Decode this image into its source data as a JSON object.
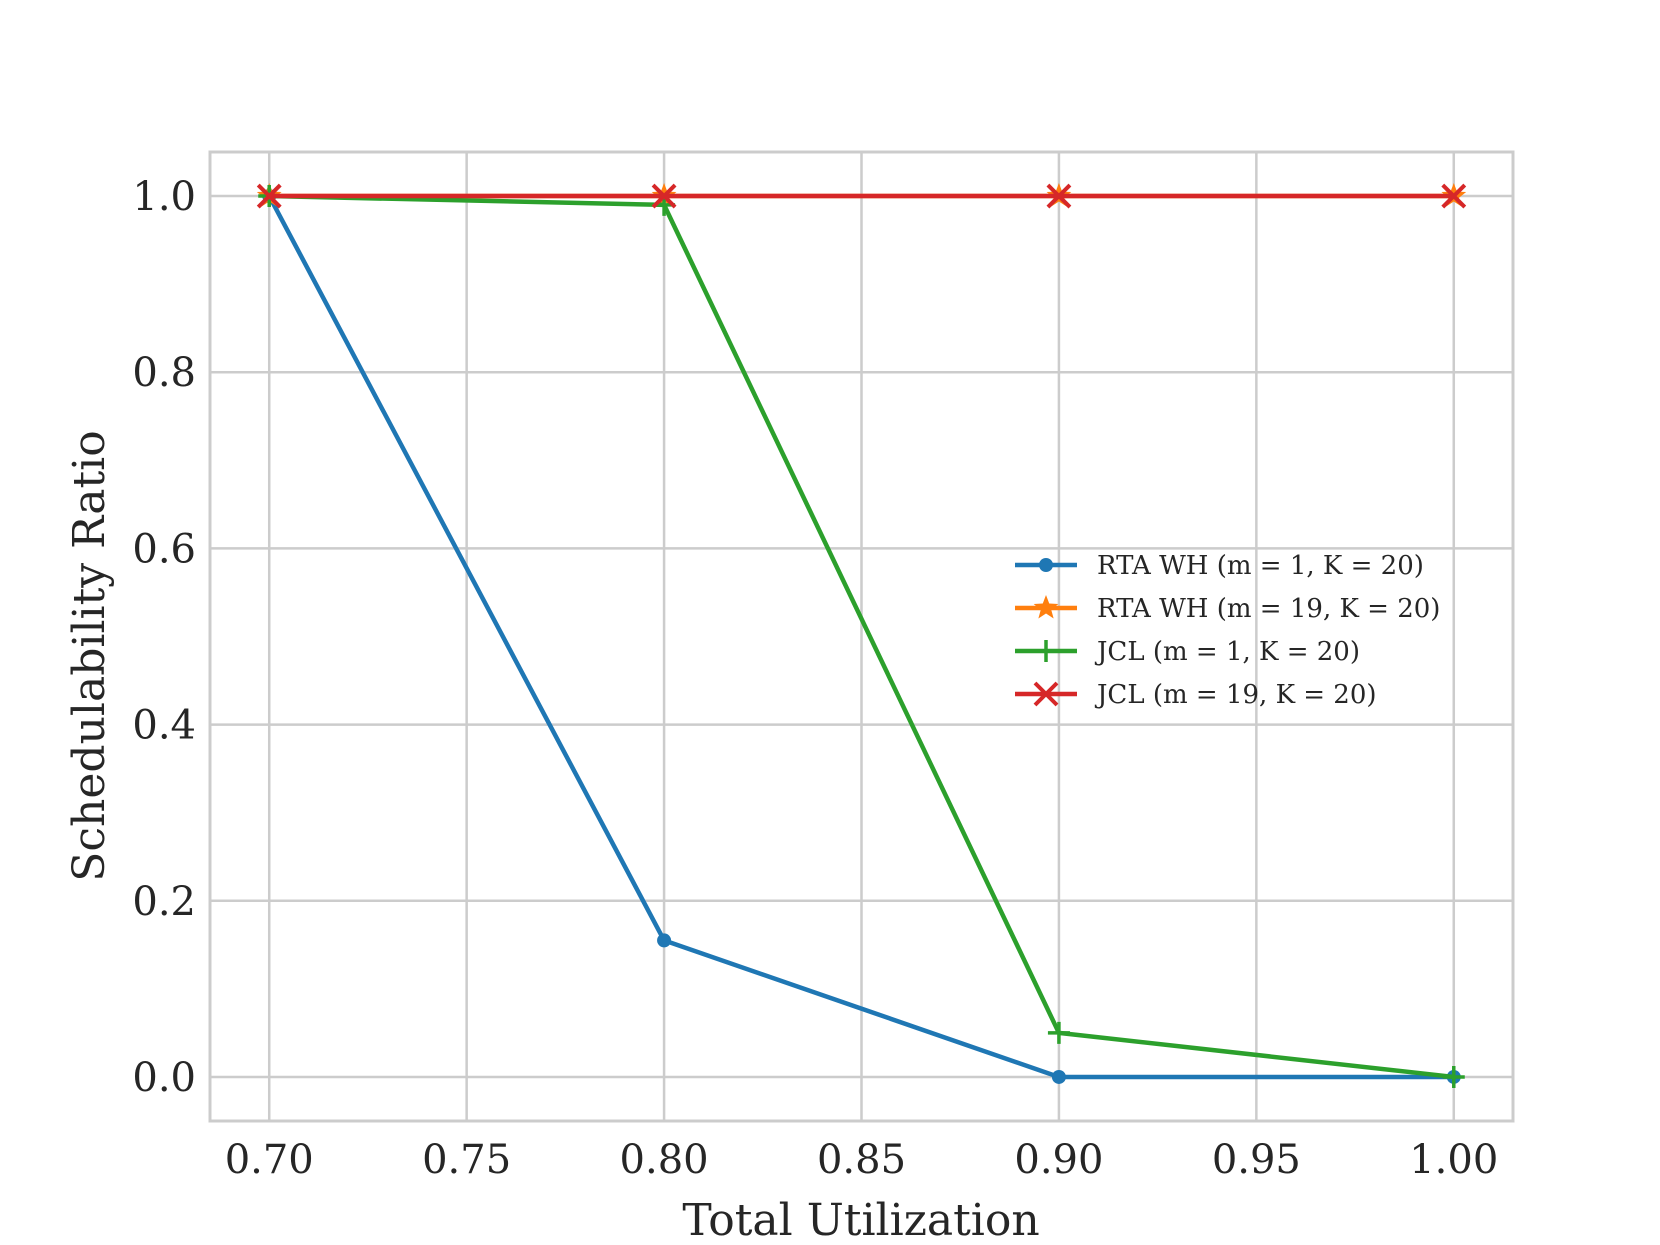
{
  "chart_data": {
    "type": "line",
    "title": "",
    "xlabel": "Total Utilization",
    "ylabel": "Schedulability Ratio",
    "xlim": [
      0.685,
      1.015
    ],
    "ylim": [
      -0.05,
      1.05
    ],
    "xticks": [
      0.7,
      0.75,
      0.8,
      0.85,
      0.9,
      0.95,
      1.0
    ],
    "xtick_labels": [
      "0.70",
      "0.75",
      "0.80",
      "0.85",
      "0.90",
      "0.95",
      "1.00"
    ],
    "yticks": [
      0.0,
      0.2,
      0.4,
      0.6,
      0.8,
      1.0
    ],
    "ytick_labels": [
      "0.0",
      "0.2",
      "0.4",
      "0.6",
      "0.8",
      "1.0"
    ],
    "grid": true,
    "legend_position": "center-right",
    "x": [
      0.7,
      0.8,
      0.9,
      1.0
    ],
    "series": [
      {
        "name": "RTA WH (m = 1, K = 20)",
        "values": [
          1.0,
          0.155,
          0.0,
          0.0
        ],
        "color": "#1f77b4",
        "marker": "circle"
      },
      {
        "name": "RTA WH (m = 19, K = 20)",
        "values": [
          1.0,
          1.0,
          1.0,
          1.0
        ],
        "color": "#ff7f0e",
        "marker": "star"
      },
      {
        "name": "JCL (m = 1, K = 20)",
        "values": [
          1.0,
          0.99,
          0.05,
          0.0
        ],
        "color": "#2ca02c",
        "marker": "plus"
      },
      {
        "name": "JCL (m = 19, K = 20)",
        "values": [
          1.0,
          1.0,
          1.0,
          1.0
        ],
        "color": "#d62728",
        "marker": "x"
      }
    ]
  }
}
